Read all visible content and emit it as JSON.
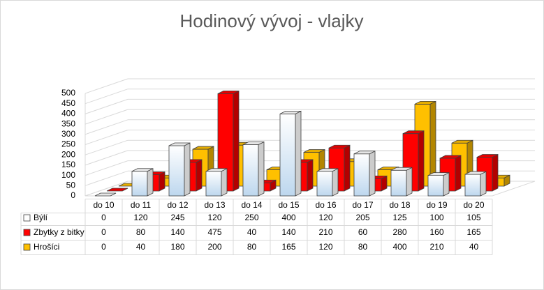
{
  "chart_data": {
    "type": "bar3d",
    "title": "Hodinový vývoj - vlajky",
    "categories": [
      "do 10",
      "do 11",
      "do 12",
      "do 13",
      "do 14",
      "do 15",
      "do 16",
      "do 17",
      "do 18",
      "do 19",
      "do 20"
    ],
    "series": [
      {
        "name": "Býlí",
        "color": "#ffffff",
        "values": [
          0,
          120,
          245,
          120,
          250,
          400,
          120,
          205,
          125,
          100,
          105
        ]
      },
      {
        "name": "Zbytky z bitky",
        "color": "#ff0000",
        "values": [
          0,
          80,
          140,
          475,
          40,
          140,
          210,
          60,
          280,
          160,
          165
        ]
      },
      {
        "name": "Hrošíci",
        "color": "#ffc000",
        "values": [
          0,
          40,
          180,
          200,
          80,
          165,
          120,
          80,
          400,
          210,
          40
        ]
      }
    ],
    "ylim": [
      0,
      500
    ],
    "yticks": [
      0,
      50,
      100,
      150,
      200,
      250,
      300,
      350,
      400,
      450,
      500
    ],
    "grid": true
  }
}
